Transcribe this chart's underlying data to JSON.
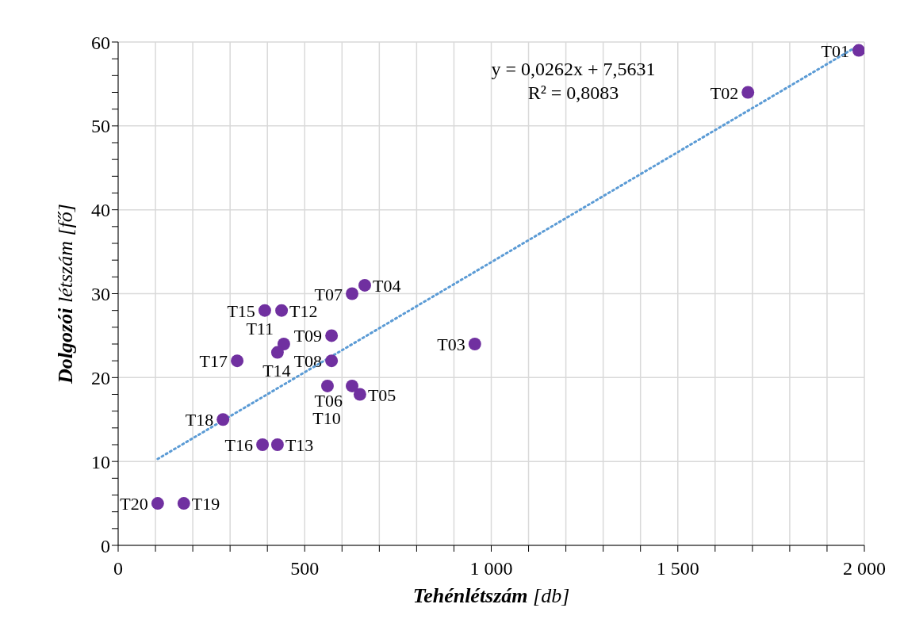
{
  "chart_data": {
    "type": "scatter",
    "xlabel": "Tehénlétszám [db]",
    "ylabel": "Dolgozói létszám [fő]",
    "series": [
      {
        "color": "#7030a0",
        "x": [
          1985,
          1688,
          956,
          661,
          648,
          627,
          627,
          572,
          572,
          561,
          444,
          438,
          427,
          427,
          393,
          387,
          319,
          281,
          176,
          106
        ],
        "values": [
          59,
          54,
          24,
          31,
          18,
          19,
          30,
          22,
          25,
          19,
          24,
          28,
          23,
          12,
          28,
          12,
          22,
          15,
          5,
          5
        ]
      },
      {
        "type": "line",
        "color": "#5b9bd5",
        "line_style": "dotted",
        "marker": "none",
        "x": [
          106,
          1985
        ],
        "values": [
          10.3,
          59.6
        ]
      }
    ],
    "annotations": [
      "y = 0,0262x + 7,5631",
      "R² = 0,8083",
      {
        "text": "T01",
        "x": 1985,
        "y": 59
      },
      {
        "text": "T02",
        "x": 1688,
        "y": 54
      },
      {
        "text": "T03",
        "x": 956,
        "y": 24
      },
      {
        "text": "T04",
        "x": 661,
        "y": 31
      },
      {
        "text": "T05",
        "x": 648,
        "y": 18
      },
      {
        "text": "T06",
        "x": 627,
        "y": 19
      },
      {
        "text": "T07",
        "x": 627,
        "y": 30
      },
      {
        "text": "T08",
        "x": 572,
        "y": 22
      },
      {
        "text": "T09",
        "x": 572,
        "y": 25
      },
      {
        "text": "T10",
        "x": 561,
        "y": 19
      },
      {
        "text": "T11",
        "x": 444,
        "y": 24
      },
      {
        "text": "T12",
        "x": 438,
        "y": 28
      },
      {
        "text": "T13",
        "x": 427,
        "y": 12
      },
      {
        "text": "T14",
        "x": 427,
        "y": 23
      },
      {
        "text": "T15",
        "x": 393,
        "y": 28
      },
      {
        "text": "T16",
        "x": 387,
        "y": 12
      },
      {
        "text": "T17",
        "x": 319,
        "y": 22
      },
      {
        "text": "T18",
        "x": 281,
        "y": 15
      },
      {
        "text": "T19",
        "x": 176,
        "y": 5
      },
      {
        "text": "T20",
        "x": 106,
        "y": 5
      }
    ],
    "xlim": [
      0,
      2000
    ],
    "xticks": [
      0,
      {
        "value": 100,
        "label": null
      },
      {
        "value": 200,
        "label": null
      },
      {
        "value": 300,
        "label": null
      },
      {
        "value": 400,
        "label": null
      },
      500,
      {
        "value": 600,
        "label": null
      },
      {
        "value": 700,
        "label": null
      },
      {
        "value": 800,
        "label": null
      },
      {
        "value": 900,
        "label": null
      },
      {
        "value": 1000,
        "label": "1 000"
      },
      {
        "value": 1100,
        "label": null
      },
      {
        "value": 1200,
        "label": null
      },
      {
        "value": 1300,
        "label": null
      },
      {
        "value": 1400,
        "label": null
      },
      {
        "value": 1500,
        "label": "1 500"
      },
      {
        "value": 1600,
        "label": null
      },
      {
        "value": 1700,
        "label": null
      },
      {
        "value": 1800,
        "label": null
      },
      {
        "value": 1900,
        "label": null
      },
      {
        "value": 2000,
        "label": "2 000"
      }
    ],
    "ylim": [
      0,
      60
    ],
    "yticks": [
      0,
      {
        "value": 2,
        "label": null
      },
      {
        "value": 4,
        "label": null
      },
      {
        "value": 6,
        "label": null
      },
      {
        "value": 8,
        "label": null
      },
      10,
      {
        "value": 12,
        "label": null
      },
      {
        "value": 14,
        "label": null
      },
      {
        "value": 16,
        "label": null
      },
      {
        "value": 18,
        "label": null
      },
      20,
      {
        "value": 22,
        "label": null
      },
      {
        "value": 24,
        "label": null
      },
      {
        "value": 26,
        "label": null
      },
      {
        "value": 28,
        "label": null
      },
      30,
      {
        "value": 32,
        "label": null
      },
      {
        "value": 34,
        "label": null
      },
      {
        "value": 36,
        "label": null
      },
      {
        "value": 38,
        "label": null
      },
      40,
      {
        "value": 42,
        "label": null
      },
      {
        "value": 44,
        "label": null
      },
      {
        "value": 46,
        "label": null
      },
      {
        "value": 48,
        "label": null
      },
      50,
      {
        "value": 52,
        "label": null
      },
      {
        "value": 54,
        "label": null
      },
      {
        "value": 56,
        "label": null
      },
      {
        "value": 58,
        "label": null
      },
      60
    ],
    "grid": true,
    "marker": "circle"
  }
}
